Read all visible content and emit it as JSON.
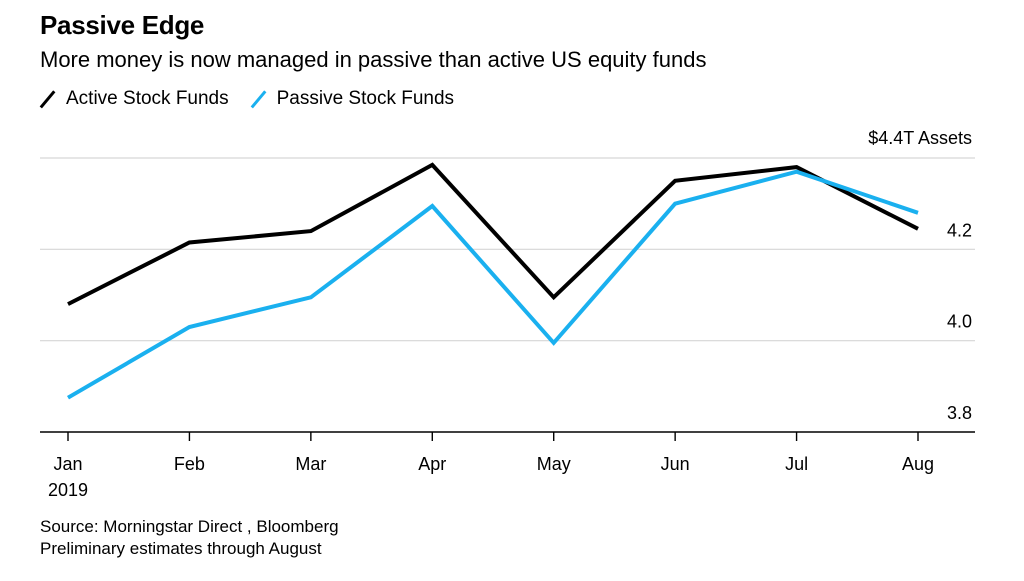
{
  "chart_data": {
    "type": "line",
    "title": "Passive Edge",
    "subtitle": "More money is now managed in passive than active US equity funds",
    "categories": [
      "Jan",
      "Feb",
      "Mar",
      "Apr",
      "May",
      "Jun",
      "Jul",
      "Aug"
    ],
    "x_sublabel": "2019",
    "y_unit_label": "$4.4T Assets",
    "y_ticks": [
      {
        "value": 4.4,
        "label": ""
      },
      {
        "value": 4.2,
        "label": "4.2"
      },
      {
        "value": 4.0,
        "label": "4.0"
      },
      {
        "value": 3.8,
        "label": "3.8"
      }
    ],
    "ylim": [
      3.8,
      4.4
    ],
    "grid": true,
    "legend_position": "top-left",
    "series": [
      {
        "name": "Active Stock Funds",
        "color": "#000000",
        "values": [
          4.08,
          4.215,
          4.24,
          4.385,
          4.095,
          4.35,
          4.38,
          4.245
        ]
      },
      {
        "name": "Passive Stock Funds",
        "color": "#1ab0ef",
        "values": [
          3.875,
          4.03,
          4.095,
          4.295,
          3.995,
          4.3,
          4.37,
          4.28
        ]
      }
    ],
    "source": "Source: Morningstar Direct , Bloomberg",
    "note": "Preliminary estimates through August"
  }
}
